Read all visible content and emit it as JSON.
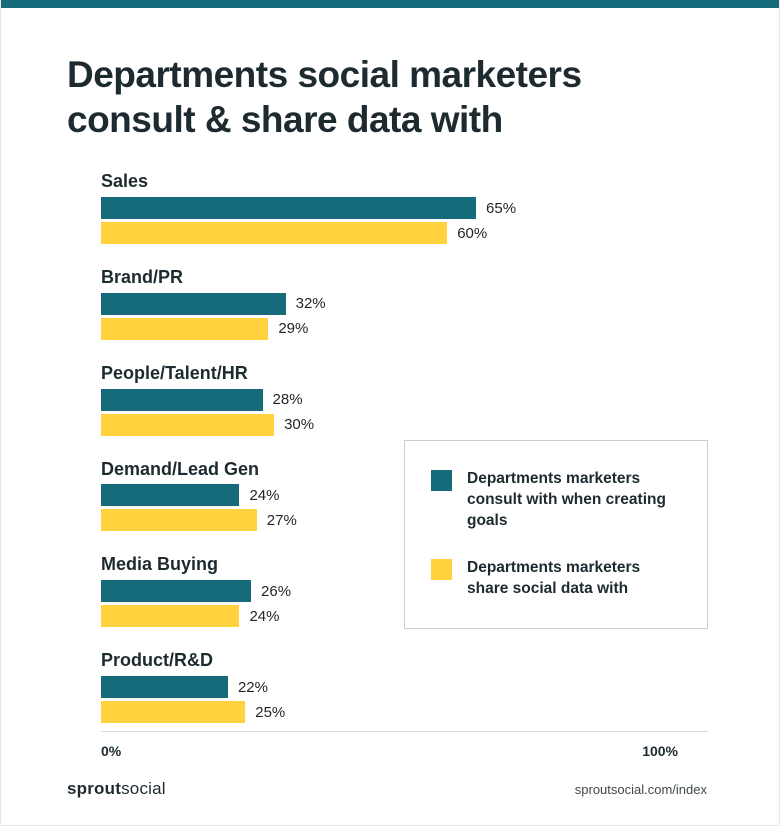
{
  "colors": {
    "teal": "#156B7A",
    "yellow": "#FFD23E",
    "ink": "#1D2B30",
    "axis_line": "#D9D9D9",
    "legend_border": "#C9CDCE",
    "link_text": "#40484C"
  },
  "header": {
    "title_line1": "Departments social marketers",
    "title_line2": "consult & share data with"
  },
  "chart_data": {
    "type": "bar",
    "orientation": "horizontal",
    "title": "Departments social marketers consult & share data with",
    "categories": [
      "Sales",
      "Brand/PR",
      "People/Talent/HR",
      "Demand/Lead Gen",
      "Media Buying",
      "Product/R&D"
    ],
    "series": [
      {
        "name": "Departments marketers consult with when creating goals",
        "color": "#156B7A",
        "values": [
          65,
          32,
          28,
          24,
          26,
          22
        ]
      },
      {
        "name": "Departments marketers share social data with",
        "color": "#FFD23E",
        "values": [
          60,
          29,
          30,
          27,
          24,
          25
        ]
      }
    ],
    "value_suffix": "%",
    "xlim": [
      0,
      100
    ],
    "x_axis_labels": [
      "0%",
      "100%"
    ],
    "grid": false,
    "legend_position": "right-middle"
  },
  "axis": {
    "min_label": "0%",
    "max_label": "100%"
  },
  "footer": {
    "brand_bold": "sprout",
    "brand_regular": "social",
    "link": "sproutsocial.com/index"
  }
}
